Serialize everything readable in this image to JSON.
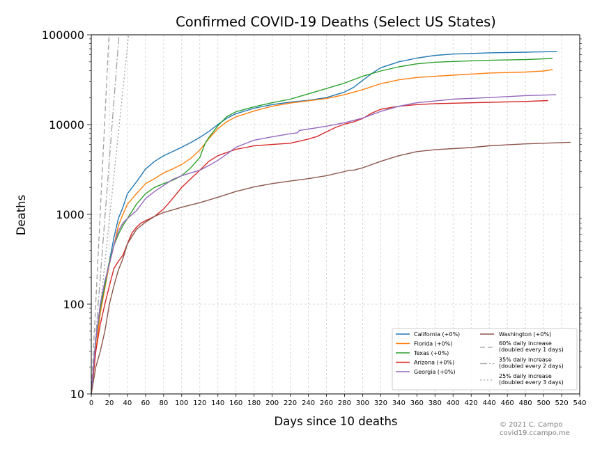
{
  "chart_data": {
    "type": "line",
    "title": "Confirmed COVID-19 Deaths (Select US States)",
    "xlabel": "Days since 10 deaths",
    "ylabel": "Deaths",
    "xlim": [
      0,
      540
    ],
    "ylim": [
      10,
      100000
    ],
    "yscale": "log",
    "grid": true,
    "legend_position": "lower-right",
    "x_ticks": [
      0,
      20,
      40,
      60,
      80,
      100,
      120,
      140,
      160,
      180,
      200,
      220,
      240,
      260,
      280,
      300,
      320,
      340,
      360,
      380,
      400,
      420,
      440,
      460,
      480,
      500,
      520,
      540
    ],
    "y_ticks": [
      10,
      100,
      1000,
      10000,
      100000
    ],
    "y_tick_labels": [
      "10",
      "100",
      "1000",
      "10000",
      "100000"
    ],
    "series": [
      {
        "name": "California (+0%)",
        "color": "#1f77b4",
        "x": [
          0,
          5,
          10,
          15,
          20,
          25,
          30,
          35,
          40,
          50,
          60,
          70,
          80,
          90,
          100,
          110,
          120,
          130,
          140,
          150,
          160,
          180,
          200,
          220,
          240,
          260,
          280,
          290,
          300,
          310,
          320,
          340,
          360,
          380,
          400,
          440,
          480,
          515
        ],
        "y": [
          10,
          40,
          100,
          170,
          300,
          550,
          900,
          1200,
          1700,
          2300,
          3200,
          3900,
          4500,
          5000,
          5600,
          6300,
          7200,
          8400,
          10000,
          11800,
          13200,
          15200,
          16700,
          17800,
          18600,
          20000,
          23000,
          26000,
          31000,
          37000,
          43000,
          50000,
          55000,
          59000,
          61000,
          63000,
          64000,
          65000
        ]
      },
      {
        "name": "Florida (+0%)",
        "color": "#ff7f0e",
        "x": [
          0,
          5,
          10,
          15,
          20,
          25,
          30,
          35,
          40,
          50,
          60,
          70,
          80,
          90,
          100,
          110,
          120,
          125,
          130,
          140,
          150,
          160,
          180,
          200,
          220,
          240,
          260,
          280,
          300,
          320,
          340,
          360,
          380,
          400,
          440,
          480,
          500,
          510
        ],
        "y": [
          10,
          30,
          80,
          150,
          280,
          450,
          750,
          1000,
          1300,
          1700,
          2200,
          2500,
          2900,
          3200,
          3600,
          4200,
          5200,
          6000,
          7000,
          9000,
          10800,
          12200,
          14200,
          16000,
          17400,
          18400,
          19500,
          21500,
          24500,
          28500,
          31500,
          33500,
          34500,
          35500,
          37500,
          38500,
          39500,
          41000
        ]
      },
      {
        "name": "Texas (+0%)",
        "color": "#2ca02c",
        "x": [
          0,
          5,
          10,
          15,
          20,
          25,
          30,
          35,
          40,
          50,
          60,
          70,
          80,
          90,
          100,
          110,
          120,
          123,
          126,
          130,
          140,
          150,
          160,
          180,
          200,
          220,
          240,
          260,
          280,
          300,
          320,
          340,
          360,
          380,
          400,
          440,
          480,
          510
        ],
        "y": [
          10,
          40,
          90,
          160,
          300,
          450,
          600,
          750,
          900,
          1300,
          1700,
          2000,
          2200,
          2400,
          2700,
          3300,
          4300,
          5200,
          6200,
          7200,
          9700,
          12300,
          13900,
          15800,
          17500,
          19200,
          22000,
          25200,
          29000,
          34500,
          39500,
          44000,
          47500,
          49500,
          50500,
          52000,
          53000,
          54500
        ]
      },
      {
        "name": "Arizona (+0%)",
        "color": "#d62728",
        "x": [
          0,
          5,
          10,
          15,
          20,
          25,
          30,
          35,
          40,
          45,
          50,
          55,
          60,
          70,
          80,
          90,
          100,
          110,
          120,
          130,
          140,
          150,
          160,
          180,
          200,
          220,
          240,
          250,
          260,
          270,
          280,
          290,
          300,
          310,
          320,
          340,
          360,
          380,
          400,
          440,
          480,
          505
        ],
        "y": [
          10,
          30,
          60,
          100,
          160,
          250,
          300,
          350,
          470,
          620,
          720,
          800,
          850,
          950,
          1150,
          1500,
          2000,
          2500,
          3100,
          3900,
          4500,
          4900,
          5300,
          5800,
          6000,
          6200,
          6900,
          7400,
          8300,
          9300,
          10100,
          10700,
          11700,
          13400,
          14800,
          16000,
          16700,
          17100,
          17300,
          17700,
          18100,
          18500
        ]
      },
      {
        "name": "Georgia (+0%)",
        "color": "#9467bd",
        "x": [
          0,
          5,
          10,
          15,
          20,
          25,
          30,
          35,
          40,
          50,
          60,
          70,
          80,
          90,
          100,
          110,
          120,
          130,
          140,
          150,
          160,
          180,
          200,
          220,
          228,
          230,
          240,
          260,
          280,
          300,
          320,
          340,
          360,
          380,
          400,
          440,
          480,
          514
        ],
        "y": [
          10,
          40,
          100,
          180,
          280,
          450,
          650,
          800,
          900,
          1100,
          1500,
          1800,
          2100,
          2450,
          2700,
          2900,
          3100,
          3500,
          4000,
          4700,
          5600,
          6700,
          7300,
          7900,
          8100,
          8600,
          8900,
          9600,
          10500,
          11800,
          14000,
          16000,
          17500,
          18300,
          19200,
          20000,
          21000,
          21500
        ]
      },
      {
        "name": "Washington (+0%)",
        "color": "#8c564b",
        "x": [
          0,
          5,
          10,
          15,
          20,
          25,
          30,
          35,
          40,
          50,
          60,
          70,
          80,
          100,
          120,
          140,
          160,
          180,
          200,
          220,
          240,
          260,
          280,
          285,
          290,
          300,
          320,
          340,
          360,
          380,
          400,
          420,
          440,
          460,
          480,
          500,
          530
        ],
        "y": [
          10,
          20,
          30,
          50,
          100,
          160,
          240,
          320,
          470,
          680,
          820,
          950,
          1050,
          1200,
          1350,
          1550,
          1800,
          2020,
          2200,
          2350,
          2500,
          2700,
          3000,
          3100,
          3100,
          3300,
          3900,
          4500,
          5000,
          5250,
          5400,
          5550,
          5800,
          5950,
          6100,
          6200,
          6350
        ]
      }
    ],
    "reference_lines": [
      {
        "name": "60% daily increase\n(doubled every 1 days)",
        "rate": 0.6,
        "dash": "7,4",
        "color": "#a0a0a0"
      },
      {
        "name": "35% daily increase\n(doubled every 2 days)",
        "rate": 0.35,
        "dash": "10,3,2,3",
        "color": "#a0a0a0"
      },
      {
        "name": "25% daily increase\n(doubled every 3 days)",
        "rate": 0.25,
        "dash": "2,3",
        "color": "#a0a0a0"
      }
    ]
  },
  "copyright": {
    "line1": "© 2021 C. Campo",
    "line2": "covid19.ccampo.me"
  }
}
